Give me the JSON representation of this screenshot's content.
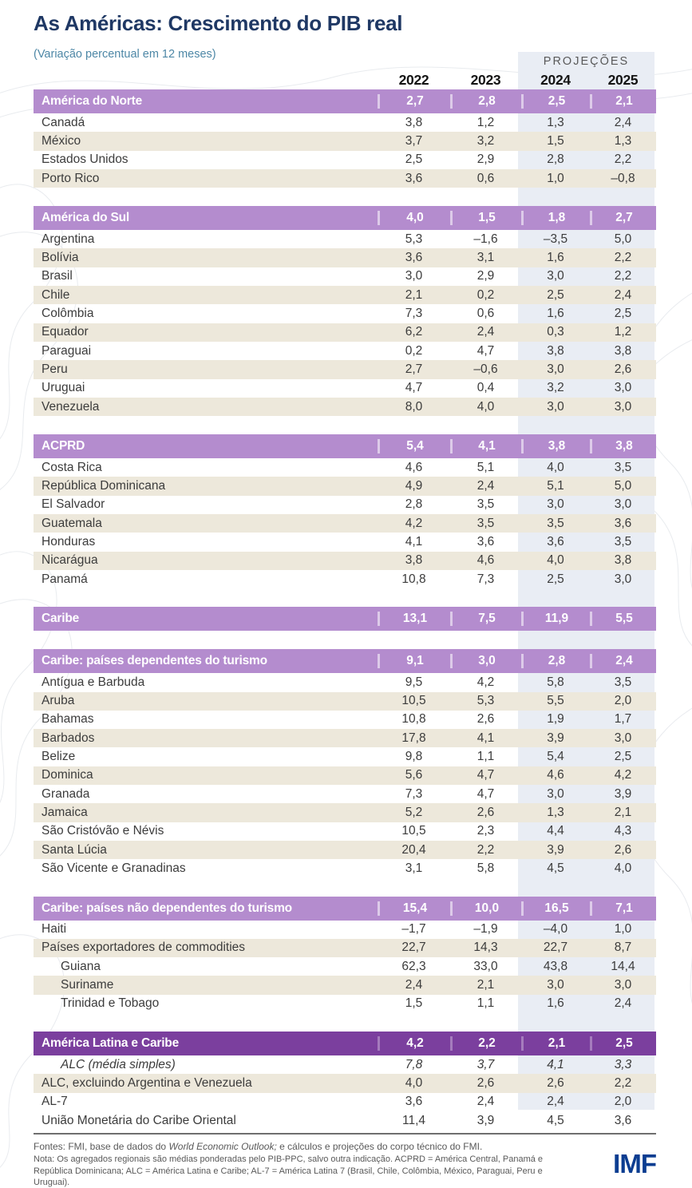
{
  "page": {
    "title": "As Américas: Crescimento do PIB real",
    "subtitle": "(Variação percentual em 12 meses)",
    "projections_label": "PROJEÇÕES",
    "years": [
      "2022",
      "2023",
      "2024",
      "2025"
    ]
  },
  "table": {
    "sections": [
      {
        "header": {
          "label": "América do Norte",
          "values": [
            "2,7",
            "2,8",
            "2,5",
            "2,1"
          ],
          "style": "light"
        },
        "rows": [
          {
            "label": "Canadá",
            "values": [
              "3,8",
              "1,2",
              "1,3",
              "2,4"
            ],
            "bg": "white"
          },
          {
            "label": "México",
            "values": [
              "3,7",
              "3,2",
              "1,5",
              "1,3"
            ],
            "bg": "beige"
          },
          {
            "label": "Estados Unidos",
            "values": [
              "2,5",
              "2,9",
              "2,8",
              "2,2"
            ],
            "bg": "white"
          },
          {
            "label": "Porto Rico",
            "values": [
              "3,6",
              "0,6",
              "1,0",
              "–0,8"
            ],
            "bg": "beige"
          }
        ]
      },
      {
        "header": {
          "label": "América do Sul",
          "values": [
            "4,0",
            "1,5",
            "1,8",
            "2,7"
          ],
          "style": "light"
        },
        "rows": [
          {
            "label": "Argentina",
            "values": [
              "5,3",
              "–1,6",
              "–3,5",
              "5,0"
            ],
            "bg": "white"
          },
          {
            "label": "Bolívia",
            "values": [
              "3,6",
              "3,1",
              "1,6",
              "2,2"
            ],
            "bg": "beige"
          },
          {
            "label": "Brasil",
            "values": [
              "3,0",
              "2,9",
              "3,0",
              "2,2"
            ],
            "bg": "white"
          },
          {
            "label": "Chile",
            "values": [
              "2,1",
              "0,2",
              "2,5",
              "2,4"
            ],
            "bg": "beige"
          },
          {
            "label": "Colômbia",
            "values": [
              "7,3",
              "0,6",
              "1,6",
              "2,5"
            ],
            "bg": "white"
          },
          {
            "label": "Equador",
            "values": [
              "6,2",
              "2,4",
              "0,3",
              "1,2"
            ],
            "bg": "beige"
          },
          {
            "label": "Paraguai",
            "values": [
              "0,2",
              "4,7",
              "3,8",
              "3,8"
            ],
            "bg": "white"
          },
          {
            "label": "Peru",
            "values": [
              "2,7",
              "–0,6",
              "3,0",
              "2,6"
            ],
            "bg": "beige"
          },
          {
            "label": "Uruguai",
            "values": [
              "4,7",
              "0,4",
              "3,2",
              "3,0"
            ],
            "bg": "white"
          },
          {
            "label": "Venezuela",
            "values": [
              "8,0",
              "4,0",
              "3,0",
              "3,0"
            ],
            "bg": "beige"
          }
        ]
      },
      {
        "header": {
          "label": "ACPRD",
          "values": [
            "5,4",
            "4,1",
            "3,8",
            "3,8"
          ],
          "style": "light"
        },
        "rows": [
          {
            "label": "Costa Rica",
            "values": [
              "4,6",
              "5,1",
              "4,0",
              "3,5"
            ],
            "bg": "white"
          },
          {
            "label": "República Dominicana",
            "values": [
              "4,9",
              "2,4",
              "5,1",
              "5,0"
            ],
            "bg": "beige"
          },
          {
            "label": "El Salvador",
            "values": [
              "2,8",
              "3,5",
              "3,0",
              "3,0"
            ],
            "bg": "white"
          },
          {
            "label": "Guatemala",
            "values": [
              "4,2",
              "3,5",
              "3,5",
              "3,6"
            ],
            "bg": "beige"
          },
          {
            "label": "Honduras",
            "values": [
              "4,1",
              "3,6",
              "3,6",
              "3,5"
            ],
            "bg": "white"
          },
          {
            "label": "Nicarágua",
            "values": [
              "3,8",
              "4,6",
              "4,0",
              "3,8"
            ],
            "bg": "beige"
          },
          {
            "label": "Panamá",
            "values": [
              "10,8",
              "7,3",
              "2,5",
              "3,0"
            ],
            "bg": "white"
          }
        ]
      },
      {
        "header": {
          "label": "Caribe",
          "values": [
            "13,1",
            "7,5",
            "11,9",
            "5,5"
          ],
          "style": "light"
        },
        "rows": []
      },
      {
        "header": {
          "label": "Caribe: países dependentes do turismo",
          "values": [
            "9,1",
            "3,0",
            "2,8",
            "2,4"
          ],
          "style": "light"
        },
        "rows": [
          {
            "label": "Antígua e Barbuda",
            "values": [
              "9,5",
              "4,2",
              "5,8",
              "3,5"
            ],
            "bg": "white"
          },
          {
            "label": "Aruba",
            "values": [
              "10,5",
              "5,3",
              "5,5",
              "2,0"
            ],
            "bg": "beige"
          },
          {
            "label": "Bahamas",
            "values": [
              "10,8",
              "2,6",
              "1,9",
              "1,7"
            ],
            "bg": "white"
          },
          {
            "label": "Barbados",
            "values": [
              "17,8",
              "4,1",
              "3,9",
              "3,0"
            ],
            "bg": "beige"
          },
          {
            "label": "Belize",
            "values": [
              "9,8",
              "1,1",
              "5,4",
              "2,5"
            ],
            "bg": "white"
          },
          {
            "label": "Dominica",
            "values": [
              "5,6",
              "4,7",
              "4,6",
              "4,2"
            ],
            "bg": "beige"
          },
          {
            "label": "Granada",
            "values": [
              "7,3",
              "4,7",
              "3,0",
              "3,9"
            ],
            "bg": "white"
          },
          {
            "label": "Jamaica",
            "values": [
              "5,2",
              "2,6",
              "1,3",
              "2,1"
            ],
            "bg": "beige"
          },
          {
            "label": "São Cristóvão e Névis",
            "values": [
              "10,5",
              "2,3",
              "4,4",
              "4,3"
            ],
            "bg": "white"
          },
          {
            "label": "Santa Lúcia",
            "values": [
              "20,4",
              "2,2",
              "3,9",
              "2,6"
            ],
            "bg": "beige"
          },
          {
            "label": "São Vicente e Granadinas",
            "values": [
              "3,1",
              "5,8",
              "4,5",
              "4,0"
            ],
            "bg": "white"
          }
        ]
      },
      {
        "header": {
          "label": "Caribe: países não dependentes do turismo",
          "values": [
            "15,4",
            "10,0",
            "16,5",
            "7,1"
          ],
          "style": "light"
        },
        "rows": [
          {
            "label": "Haiti",
            "values": [
              "–1,7",
              "–1,9",
              "–4,0",
              "1,0"
            ],
            "bg": "white"
          },
          {
            "label": "Países exportadores de commodities",
            "values": [
              "22,7",
              "14,3",
              "22,7",
              "8,7"
            ],
            "bg": "beige"
          },
          {
            "label": "Guiana",
            "values": [
              "62,3",
              "33,0",
              "43,8",
              "14,4"
            ],
            "bg": "white",
            "indent": true
          },
          {
            "label": "Suriname",
            "values": [
              "2,4",
              "2,1",
              "3,0",
              "3,0"
            ],
            "bg": "beige",
            "indent": true
          },
          {
            "label": "Trinidad e Tobago",
            "values": [
              "1,5",
              "1,1",
              "1,6",
              "2,4"
            ],
            "bg": "white",
            "indent": true
          }
        ]
      },
      {
        "header": {
          "label": "América Latina e Caribe",
          "values": [
            "4,2",
            "2,2",
            "2,1",
            "2,5"
          ],
          "style": "dark"
        },
        "rows": [
          {
            "label": "ALC (média simples)",
            "values": [
              "7,8",
              "3,7",
              "4,1",
              "3,3"
            ],
            "bg": "white",
            "indent": true,
            "italic": true
          },
          {
            "label": "ALC, excluindo Argentina e Venezuela",
            "values": [
              "4,0",
              "2,6",
              "2,6",
              "2,2"
            ],
            "bg": "beige"
          },
          {
            "label": "AL-7",
            "values": [
              "3,6",
              "2,4",
              "2,4",
              "2,0"
            ],
            "bg": "white"
          },
          {
            "label": "União Monetária do Caribe Oriental",
            "values": [
              "11,4",
              "3,9",
              "4,5",
              "3,6"
            ],
            "bg": "white"
          }
        ]
      }
    ]
  },
  "footer": {
    "sources_prefix": "Fontes: FMI, base de dados do ",
    "sources_italic": "World Economic Outlook;",
    "sources_suffix": " e cálculos e projeções do corpo técnico do FMI.",
    "note": "Nota: Os agregados regionais são médias ponderadas pelo PIB-PPC, salvo outra indicação. ACPRD = América Central, Panamá e República Dominicana; ALC = América Latina e Caribe; AL-7 = América Latina 7 (Brasil, Chile, Colômbia, México, Paraguai, Peru e Uruguai).",
    "logo": "IMF"
  },
  "colors": {
    "title": "#1f3864",
    "subtitle": "#4d87a6",
    "header_light": "#b48cce",
    "header_dark": "#7b3f9e",
    "beige": "#ede8db",
    "band": "#e9edf4",
    "logo": "#0b3d91"
  }
}
